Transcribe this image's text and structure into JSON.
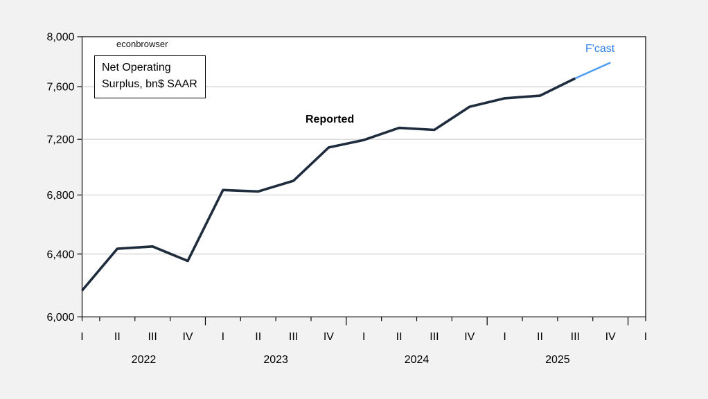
{
  "page": {
    "background": "#f2f2f2",
    "plot_background": "#ffffff"
  },
  "watermark": "econbrowser",
  "title_box": {
    "line1": "Net Operating",
    "line2": "Surplus, bn$ SAAR"
  },
  "annotations": {
    "reported": "Reported",
    "forecast": "F'cast"
  },
  "colors": {
    "reported_line": "#1e2c3e",
    "forecast_line": "#4a9bf5",
    "forecast_text": "#2c7ef0",
    "gridline": "#c8c8c8",
    "axis": "#000000",
    "text": "#000000"
  },
  "chart_data": {
    "type": "line",
    "title": "Net Operating Surplus, bn$ SAAR",
    "y_scale": "log",
    "ylim": [
      6000,
      8000
    ],
    "y_ticks": [
      6000,
      6400,
      6800,
      7200,
      7600,
      8000
    ],
    "y_tick_labels": [
      "6,000",
      "6,400",
      "6,800",
      "7,200",
      "7,600",
      "8,000"
    ],
    "x_categories": [
      "2022Q1",
      "2022Q2",
      "2022Q3",
      "2022Q4",
      "2023Q1",
      "2023Q2",
      "2023Q3",
      "2023Q4",
      "2024Q1",
      "2024Q2",
      "2024Q3",
      "2024Q4",
      "2025Q1",
      "2025Q2",
      "2025Q3",
      "2025Q4",
      "2026Q1"
    ],
    "x_tick_labels": [
      "I",
      "II",
      "III",
      "IV",
      "I",
      "II",
      "III",
      "IV",
      "I",
      "II",
      "III",
      "IV",
      "I",
      "II",
      "III",
      "IV",
      "I"
    ],
    "year_labels": [
      "2022",
      "2023",
      "2024",
      "2025"
    ],
    "grid": "horizontal-only",
    "legend_position": "none",
    "series": [
      {
        "name": "Reported",
        "color": "#1e2c3e",
        "quarters": [
          "2022Q1",
          "2022Q2",
          "2022Q3",
          "2022Q4",
          "2023Q1",
          "2023Q2",
          "2023Q3",
          "2023Q4",
          "2024Q1",
          "2024Q2",
          "2024Q3",
          "2024Q4",
          "2025Q1",
          "2025Q2",
          "2025Q3"
        ],
        "values": [
          6165,
          6435,
          6450,
          6355,
          6835,
          6825,
          6900,
          7140,
          7195,
          7285,
          7270,
          7445,
          7510,
          7530,
          7665
        ]
      },
      {
        "name": "F'cast",
        "color": "#4a9bf5",
        "quarters": [
          "2025Q3",
          "2025Q4"
        ],
        "values": [
          7665,
          7790
        ]
      }
    ]
  }
}
